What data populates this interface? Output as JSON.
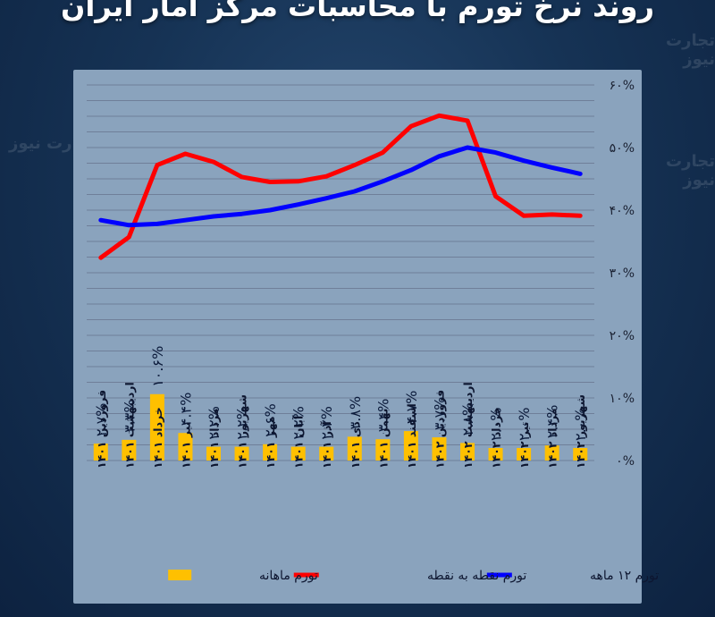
{
  "title": "روند نرخ تورم با محاسبات مرکز آمار ایران",
  "watermark": "تجارت نیوز",
  "colors": {
    "monthly": "#ffc000",
    "point_to_point": "#ff0000",
    "twelve_month": "#0000ff",
    "grid": "#6f7f99"
  },
  "chart_data": {
    "type": "bar",
    "categories": [
      "فروردین ۱۴۰۱",
      "اردیبهشت ۱۴۰۱",
      "خرداد ۱۴۰۱",
      "تیر ۱۴۰۱",
      "مرداد ۱۴۰۱",
      "شهریور ۱۴۰۱",
      "مهر ۱۴۰۱",
      "آبان ۱۴۰۱",
      "آذر ۱۴۰۱",
      "دی ۱۴۰۱",
      "بهمن ۱۴۰۱",
      "اسفند ۱۴۰۱",
      "فروردین ۱۴۰۲",
      "اردیبهشت ۱۴۰۲",
      "خرداد ۱۴۰۲",
      "تیر ۱۴۰۲",
      "مرداد ۱۴۰۲",
      "شهریور ۱۴۰۲"
    ],
    "series": [
      {
        "name": "تورم ماهانه",
        "kind": "bar",
        "values": [
          2.7,
          3.3,
          10.6,
          4.4,
          2.2,
          2.2,
          2.6,
          2.2,
          2.2,
          3.8,
          3.4,
          4.7,
          3.7,
          2.8,
          2.0,
          2.0,
          2.4,
          2.0
        ],
        "labels": [
          "۲.۷%",
          "۳.۳%",
          "۱۰.۶%",
          "۴.۴%",
          "۲.۲%",
          "۲.۲%",
          "۲.۶%",
          "۲.۲%",
          "۲.۲%",
          "۳.۸%",
          "۳.۴%",
          "۴.۷%",
          "۳.۷%",
          "۲.۸%",
          "۲.۰%",
          "۲.۰%",
          "۲.۴%",
          "۲.۰%"
        ]
      },
      {
        "name": "تورم نقطه به نقطه",
        "kind": "line",
        "values": [
          32.4,
          35.7,
          47.2,
          49.0,
          47.7,
          45.3,
          44.5,
          44.6,
          45.4,
          47.2,
          49.2,
          53.4,
          55.1,
          54.3,
          42.2,
          39.1,
          39.3,
          39.1
        ]
      },
      {
        "name": "تورم ۱۲ ماهه",
        "kind": "line",
        "values": [
          38.4,
          37.6,
          37.8,
          38.4,
          39.0,
          39.4,
          40.0,
          40.9,
          41.9,
          43.0,
          44.6,
          46.4,
          48.6,
          50.0,
          49.2,
          47.9,
          46.8,
          45.8
        ]
      }
    ],
    "ylim": [
      0,
      60
    ],
    "y_ticks": [
      {
        "value": 0,
        "label": "۰%"
      },
      {
        "value": 10,
        "label": "۱۰%"
      },
      {
        "value": 20,
        "label": "۲۰%"
      },
      {
        "value": 30,
        "label": "۳۰%"
      },
      {
        "value": 40,
        "label": "۴۰%"
      },
      {
        "value": 50,
        "label": "۵۰%"
      },
      {
        "value": 60,
        "label": "۶۰%"
      }
    ],
    "y_axis_side": "right",
    "grid": true,
    "legend_position": "bottom"
  }
}
